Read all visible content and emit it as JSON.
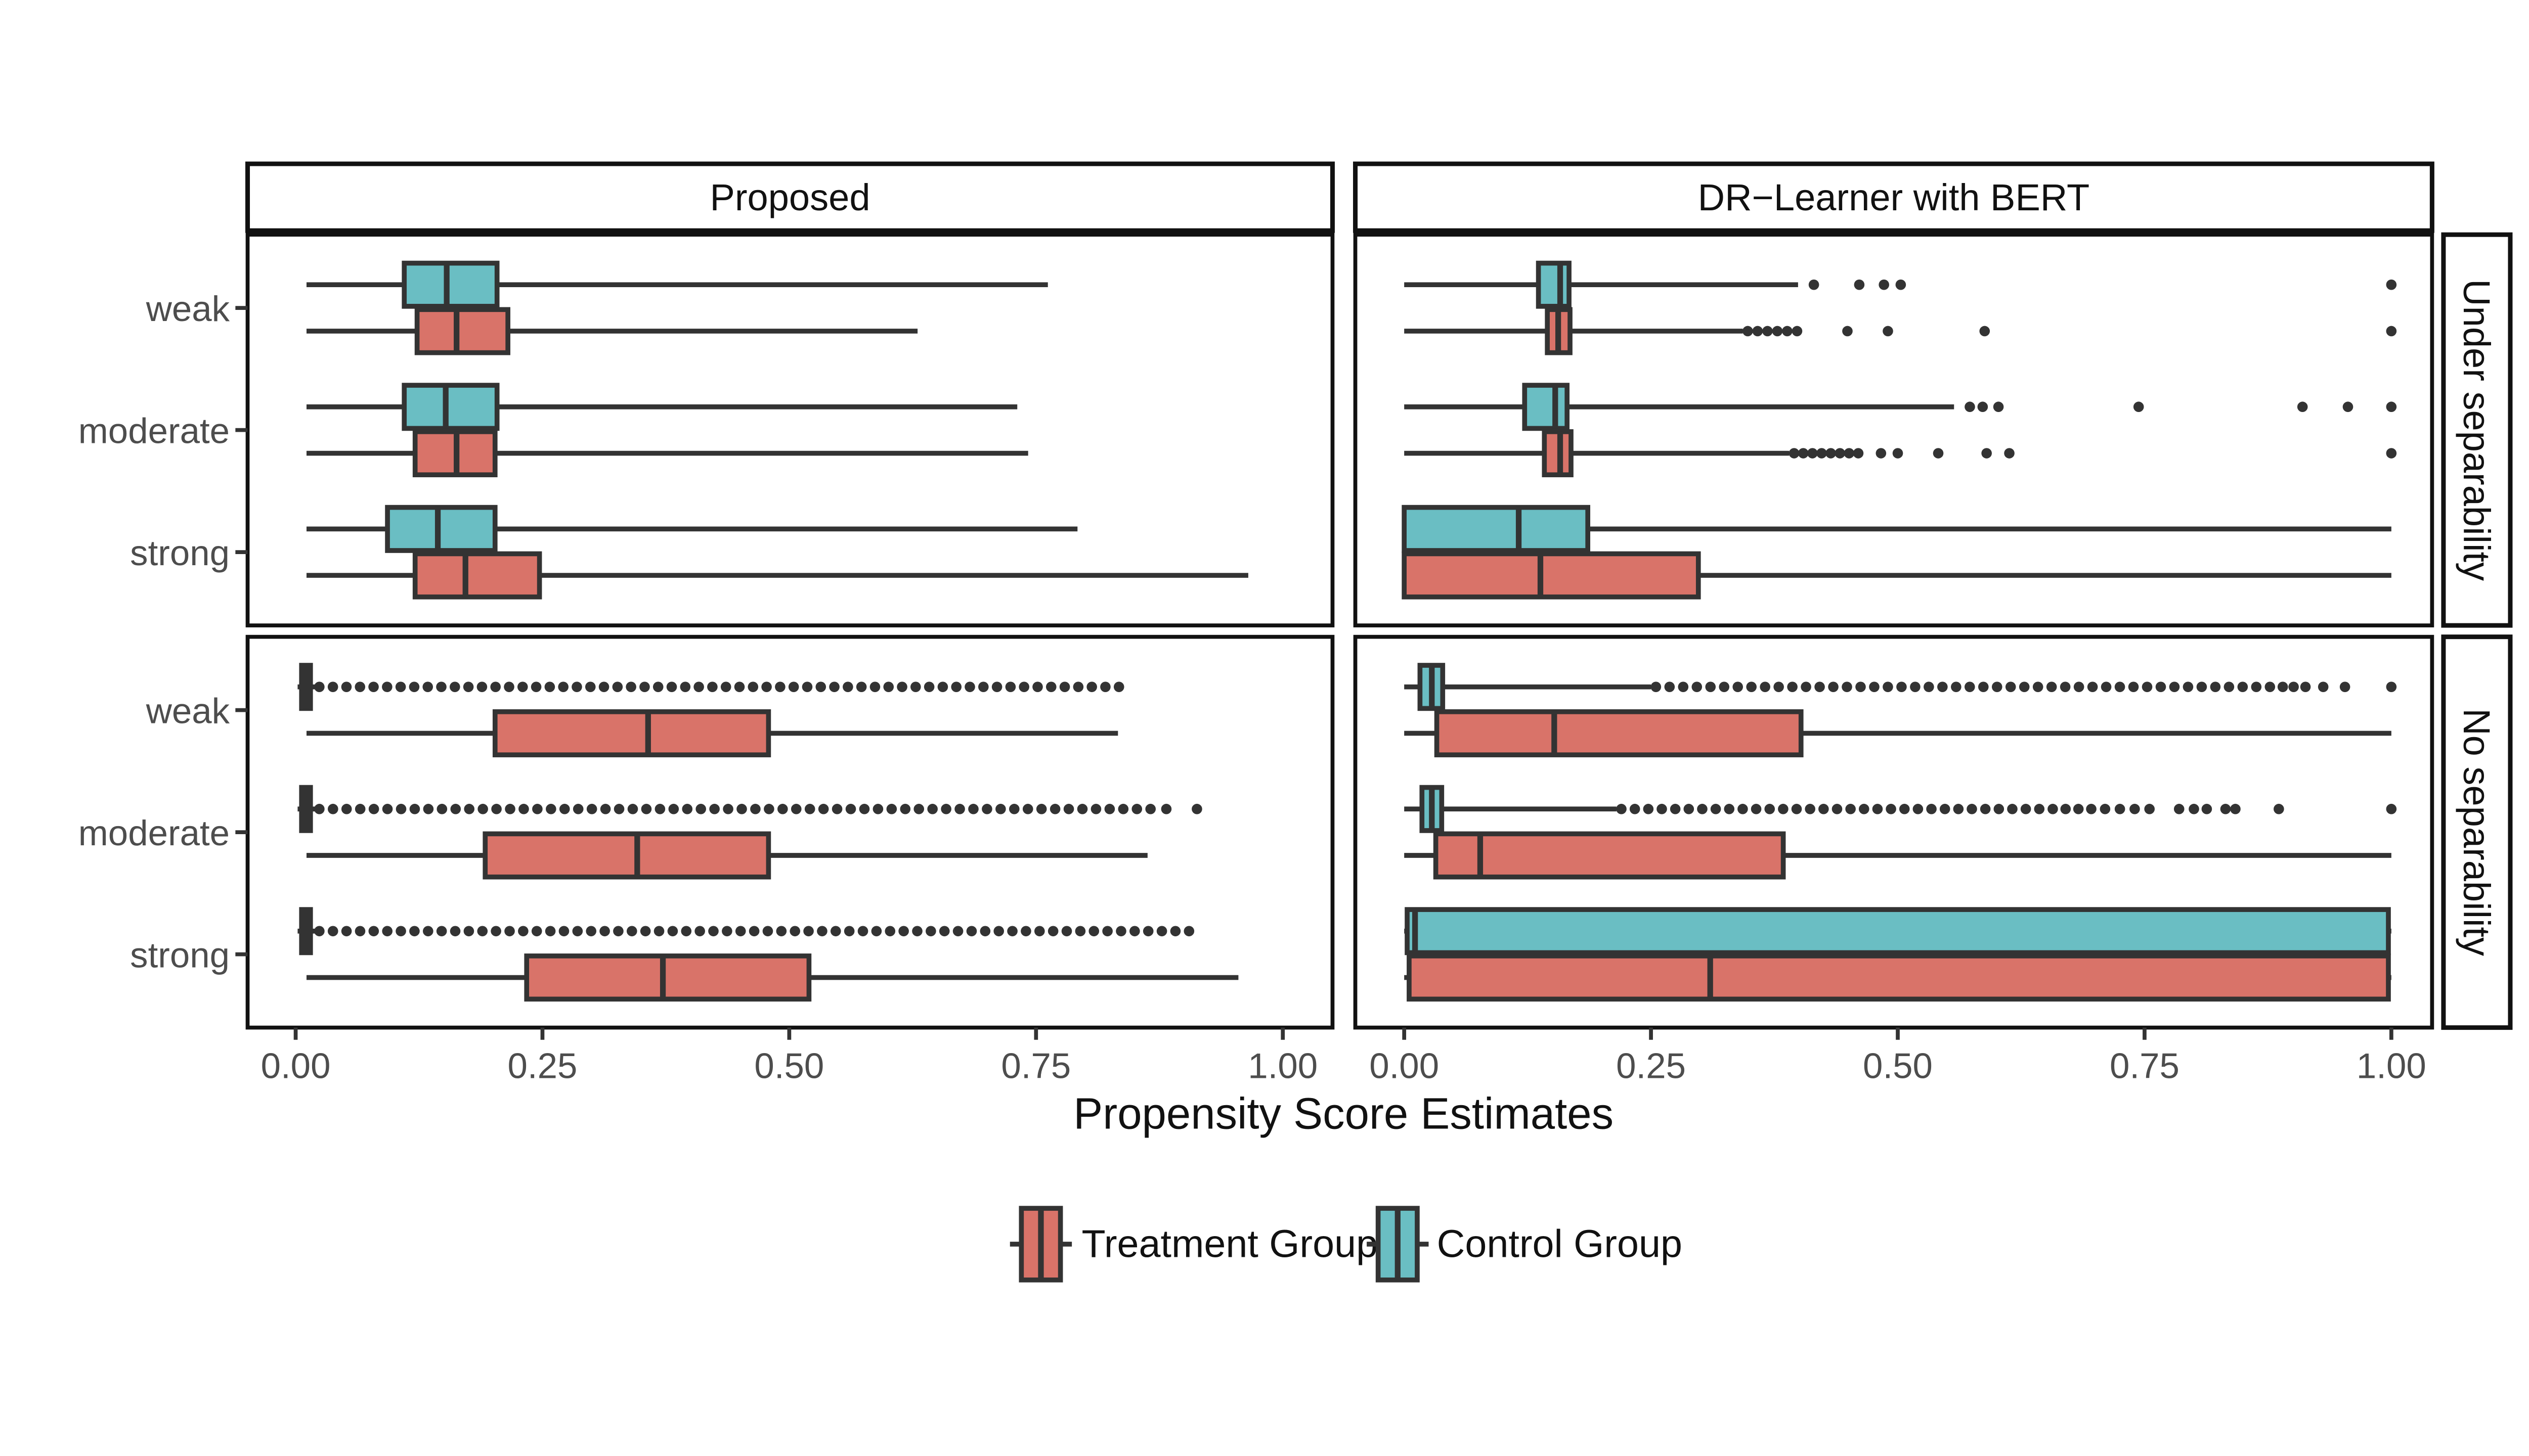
{
  "chart_data": {
    "type": "boxplot",
    "orientation": "horizontal",
    "col_facets": [
      "Proposed",
      "DR−Learner with BERT"
    ],
    "row_facets": [
      "Under separability",
      "No separability"
    ],
    "x_axis": {
      "label": "Propensity Score Estimates",
      "ticks": [
        "0.00",
        "0.25",
        "0.50",
        "0.75",
        "1.00"
      ],
      "tick_values": [
        0,
        0.25,
        0.5,
        0.75,
        1
      ],
      "range": [
        0,
        1
      ]
    },
    "y_categories": [
      "weak",
      "moderate",
      "strong"
    ],
    "legend": {
      "entries": [
        {
          "label": "Treatment Group",
          "color": "#D97369"
        },
        {
          "label": "Control Group",
          "color": "#6ABEC3"
        }
      ]
    },
    "style": {
      "box_stroke": "#333333",
      "outlier_color": "#333333",
      "panel_border": "#111111",
      "tick_text_color": "#4D4D4D",
      "treatment_fill": "#D97369",
      "control_fill": "#6ABEC3"
    },
    "boxes": [
      {
        "col": 0,
        "row": 0,
        "strength": "weak",
        "group": "Control",
        "whisker_low": 0.011,
        "q1": 0.11,
        "median": 0.153,
        "q3": 0.204,
        "whisker_high": 0.762,
        "outliers": [],
        "outlier_runs": []
      },
      {
        "col": 0,
        "row": 0,
        "strength": "weak",
        "group": "Treatment",
        "whisker_low": 0.011,
        "q1": 0.123,
        "median": 0.163,
        "q3": 0.215,
        "whisker_high": 0.63,
        "outliers": [],
        "outlier_runs": []
      },
      {
        "col": 0,
        "row": 0,
        "strength": "moderate",
        "group": "Control",
        "whisker_low": 0.011,
        "q1": 0.11,
        "median": 0.152,
        "q3": 0.204,
        "whisker_high": 0.731,
        "outliers": [],
        "outlier_runs": []
      },
      {
        "col": 0,
        "row": 0,
        "strength": "moderate",
        "group": "Treatment",
        "whisker_low": 0.011,
        "q1": 0.121,
        "median": 0.163,
        "q3": 0.202,
        "whisker_high": 0.742,
        "outliers": [],
        "outlier_runs": []
      },
      {
        "col": 0,
        "row": 0,
        "strength": "strong",
        "group": "Control",
        "whisker_low": 0.011,
        "q1": 0.093,
        "median": 0.144,
        "q3": 0.202,
        "whisker_high": 0.792,
        "outliers": [],
        "outlier_runs": []
      },
      {
        "col": 0,
        "row": 0,
        "strength": "strong",
        "group": "Treatment",
        "whisker_low": 0.011,
        "q1": 0.121,
        "median": 0.172,
        "q3": 0.247,
        "whisker_high": 0.965,
        "outliers": [],
        "outlier_runs": []
      },
      {
        "col": 1,
        "row": 0,
        "strength": "weak",
        "group": "Control",
        "whisker_low": 0.0,
        "q1": 0.136,
        "median": 0.158,
        "q3": 0.167,
        "whisker_high": 0.399,
        "outliers": [
          0.415,
          0.461,
          0.486,
          0.503,
          1.0
        ],
        "outlier_runs": []
      },
      {
        "col": 1,
        "row": 0,
        "strength": "weak",
        "group": "Treatment",
        "whisker_low": 0.0,
        "q1": 0.145,
        "median": 0.156,
        "q3": 0.168,
        "whisker_high": 0.343,
        "outliers": [
          0.449,
          0.49,
          0.588,
          1.0
        ],
        "outlier_runs": [
          [
            0.348,
            0.398,
            6
          ]
        ]
      },
      {
        "col": 1,
        "row": 0,
        "strength": "moderate",
        "group": "Control",
        "whisker_low": 0.0,
        "q1": 0.122,
        "median": 0.153,
        "q3": 0.165,
        "whisker_high": 0.557,
        "outliers": [
          0.573,
          0.586,
          0.602,
          0.744,
          0.91,
          0.956,
          1.0
        ],
        "outlier_runs": []
      },
      {
        "col": 1,
        "row": 0,
        "strength": "moderate",
        "group": "Treatment",
        "whisker_low": 0.0,
        "q1": 0.142,
        "median": 0.158,
        "q3": 0.169,
        "whisker_high": 0.39,
        "outliers": [
          0.483,
          0.5,
          0.541,
          0.59,
          0.613,
          1.0
        ],
        "outlier_runs": [
          [
            0.395,
            0.46,
            8
          ]
        ]
      },
      {
        "col": 1,
        "row": 0,
        "strength": "strong",
        "group": "Control",
        "whisker_low": 0.0,
        "q1": 0.0,
        "median": 0.116,
        "q3": 0.186,
        "whisker_high": 1.0,
        "outliers": [],
        "outlier_runs": []
      },
      {
        "col": 1,
        "row": 0,
        "strength": "strong",
        "group": "Treatment",
        "whisker_low": 0.0,
        "q1": 0.0,
        "median": 0.138,
        "q3": 0.298,
        "whisker_high": 1.0,
        "outliers": [],
        "outlier_runs": []
      },
      {
        "col": 0,
        "row": 1,
        "strength": "weak",
        "group": "Control",
        "whisker_low": 0.002,
        "q1": 0.006,
        "median": 0.01,
        "q3": 0.015,
        "whisker_high": 0.02,
        "outliers": [],
        "outlier_runs": [
          [
            0.024,
            0.834,
            60
          ]
        ]
      },
      {
        "col": 0,
        "row": 1,
        "strength": "weak",
        "group": "Treatment",
        "whisker_low": 0.011,
        "q1": 0.202,
        "median": 0.357,
        "q3": 0.479,
        "whisker_high": 0.833,
        "outliers": [],
        "outlier_runs": []
      },
      {
        "col": 0,
        "row": 1,
        "strength": "moderate",
        "group": "Control",
        "whisker_low": 0.002,
        "q1": 0.006,
        "median": 0.01,
        "q3": 0.015,
        "whisker_high": 0.02,
        "outliers": [
          0.882,
          0.913
        ],
        "outlier_runs": [
          [
            0.024,
            0.866,
            62
          ]
        ]
      },
      {
        "col": 0,
        "row": 1,
        "strength": "moderate",
        "group": "Treatment",
        "whisker_low": 0.011,
        "q1": 0.192,
        "median": 0.346,
        "q3": 0.479,
        "whisker_high": 0.863,
        "outliers": [],
        "outlier_runs": []
      },
      {
        "col": 0,
        "row": 1,
        "strength": "strong",
        "group": "Control",
        "whisker_low": 0.002,
        "q1": 0.006,
        "median": 0.01,
        "q3": 0.015,
        "whisker_high": 0.02,
        "outliers": [],
        "outlier_runs": [
          [
            0.024,
            0.905,
            65
          ]
        ]
      },
      {
        "col": 0,
        "row": 1,
        "strength": "strong",
        "group": "Treatment",
        "whisker_low": 0.011,
        "q1": 0.234,
        "median": 0.372,
        "q3": 0.52,
        "whisker_high": 0.955,
        "outliers": [],
        "outlier_runs": []
      },
      {
        "col": 1,
        "row": 1,
        "strength": "weak",
        "group": "Control",
        "whisker_low": 0.0,
        "q1": 0.016,
        "median": 0.028,
        "q3": 0.039,
        "whisker_high": 0.25,
        "outliers": [
          0.89,
          0.901,
          0.913,
          0.931,
          0.953,
          1.0
        ],
        "outlier_runs": [
          [
            0.255,
            0.877,
            46
          ]
        ]
      },
      {
        "col": 1,
        "row": 1,
        "strength": "weak",
        "group": "Treatment",
        "whisker_low": 0.0,
        "q1": 0.033,
        "median": 0.152,
        "q3": 0.402,
        "whisker_high": 1.0,
        "outliers": [],
        "outlier_runs": []
      },
      {
        "col": 1,
        "row": 1,
        "strength": "moderate",
        "group": "Control",
        "whisker_low": 0.0,
        "q1": 0.018,
        "median": 0.028,
        "q3": 0.038,
        "whisker_high": 0.215,
        "outliers": [
          0.67,
          0.683,
          0.696,
          0.71,
          0.725,
          0.74,
          0.755,
          0.785,
          0.8,
          0.813,
          0.832,
          0.842,
          0.886,
          1.0
        ],
        "outlier_runs": [
          [
            0.22,
            0.657,
            33
          ]
        ]
      },
      {
        "col": 1,
        "row": 1,
        "strength": "moderate",
        "group": "Treatment",
        "whisker_low": 0.0,
        "q1": 0.032,
        "median": 0.077,
        "q3": 0.384,
        "whisker_high": 1.0,
        "outliers": [],
        "outlier_runs": []
      },
      {
        "col": 1,
        "row": 1,
        "strength": "strong",
        "group": "Control",
        "whisker_low": 0.0,
        "q1": 0.003,
        "median": 0.011,
        "q3": 0.997,
        "whisker_high": 1.0,
        "outliers": [],
        "outlier_runs": []
      },
      {
        "col": 1,
        "row": 1,
        "strength": "strong",
        "group": "Treatment",
        "whisker_low": 0.0,
        "q1": 0.005,
        "median": 0.31,
        "q3": 0.997,
        "whisker_high": 1.0,
        "outliers": [],
        "outlier_runs": []
      }
    ]
  }
}
